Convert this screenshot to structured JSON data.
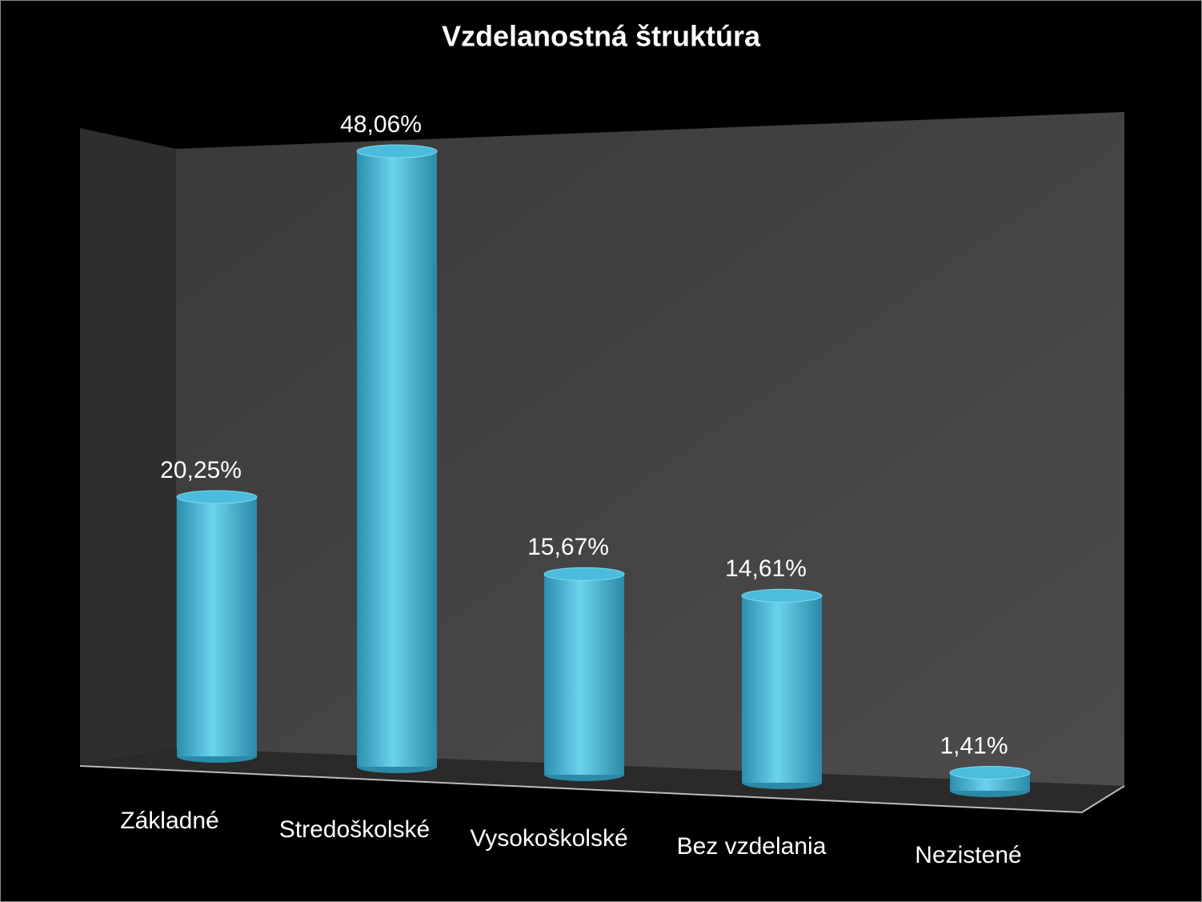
{
  "chart_data": {
    "type": "bar",
    "title": "Vzdelanostná štruktúra",
    "categories": [
      "Základné",
      "Stredoškolské",
      "Vysokoškolské",
      "Bez vzdelania",
      "Nezistené"
    ],
    "values": [
      20.25,
      48.06,
      15.67,
      14.61,
      1.41
    ],
    "value_labels": [
      "20,25%",
      "48,06%",
      "15,67%",
      "14,61%",
      "1,41%"
    ],
    "color": "#4bbcdc",
    "ylim": [
      0,
      50
    ]
  }
}
